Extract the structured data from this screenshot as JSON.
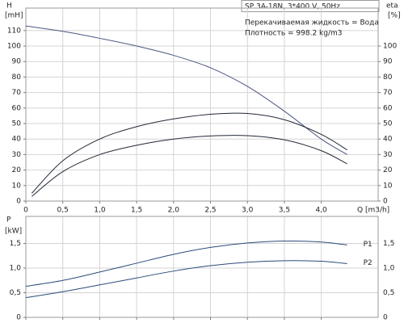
{
  "chart_data": [
    {
      "type": "line",
      "title": "SP 3A-18N, 3*400 V, 50Hz",
      "annotations": [
        "Перекачиваемая жидкость = Вода",
        "Плотность = 998.2 kg/m3"
      ],
      "ylabel": "H",
      "yunit": "[mH]",
      "y2label": "eta",
      "y2unit": "[%]",
      "xlabel": "Q [m3/h]",
      "xlim": [
        0,
        4.77
      ],
      "xticks": [
        0,
        {
          "value": 0.5,
          "label": "0,5"
        },
        {
          "value": 1,
          "label": "1,0"
        },
        {
          "value": 1.5,
          "label": "1,5"
        },
        {
          "value": 2,
          "label": "2,0"
        },
        {
          "value": 2.5,
          "label": "2,5"
        },
        {
          "value": 3,
          "label": "3,0"
        },
        {
          "value": 3.5,
          "label": "3,5"
        },
        {
          "value": 4,
          "label": "4,0"
        }
      ],
      "ylim": [
        0,
        124.5
      ],
      "yticks": [
        0,
        10,
        20,
        30,
        40,
        50,
        60,
        70,
        80,
        90,
        100,
        110
      ],
      "y2lim": [
        0,
        124.5
      ],
      "y2ticks": [
        0,
        10,
        20,
        30,
        40,
        50,
        60,
        70,
        80,
        90,
        100
      ],
      "grid": true,
      "series": [
        {
          "color": "#4a5583",
          "x": [
            0,
            0.5,
            1,
            1.5,
            2,
            2.5,
            3,
            3.5,
            4,
            4.35
          ],
          "values": [
            113,
            109.5,
            105,
            100,
            94,
            86,
            74,
            58,
            40,
            30
          ]
        },
        {
          "color": "#222836",
          "axis": "y2",
          "x": [
            0.08,
            0.5,
            1,
            1.5,
            2,
            2.5,
            3,
            3.5,
            4,
            4.35
          ],
          "values": [
            5,
            26,
            40,
            48,
            53,
            56,
            56.5,
            52.5,
            43,
            33
          ]
        },
        {
          "color": "#222836",
          "axis": "y2",
          "x": [
            0.08,
            0.5,
            1,
            1.5,
            2,
            2.5,
            3,
            3.5,
            4,
            4.35
          ],
          "values": [
            3,
            19,
            30,
            36,
            40,
            42,
            42.2,
            39.5,
            32.5,
            24
          ]
        }
      ]
    },
    {
      "type": "line",
      "ylabel": "P",
      "yunit": "[kW]",
      "xlim": [
        0,
        4.77
      ],
      "xticks": [
        0,
        0.5,
        1,
        1.5,
        2,
        2.5,
        3,
        3.5,
        4
      ],
      "ylim": [
        0,
        2.05
      ],
      "yticks": [
        0,
        {
          "value": 0.5,
          "label": "0,5"
        },
        {
          "value": 1,
          "label": "1,0"
        },
        {
          "value": 1.5,
          "label": "1,5"
        }
      ],
      "grid": true,
      "series": [
        {
          "name": "P1",
          "color": "#2c4a78",
          "x": [
            0,
            0.5,
            1,
            1.5,
            2,
            2.5,
            3,
            3.5,
            4,
            4.35
          ],
          "values": [
            0.63,
            0.75,
            0.92,
            1.1,
            1.28,
            1.42,
            1.51,
            1.55,
            1.53,
            1.47
          ]
        },
        {
          "name": "P2",
          "color": "#2c4a78",
          "x": [
            0,
            0.5,
            1,
            1.5,
            2,
            2.5,
            3,
            3.5,
            4,
            4.35
          ],
          "values": [
            0.4,
            0.52,
            0.66,
            0.8,
            0.94,
            1.05,
            1.12,
            1.15,
            1.14,
            1.09
          ]
        }
      ]
    }
  ]
}
